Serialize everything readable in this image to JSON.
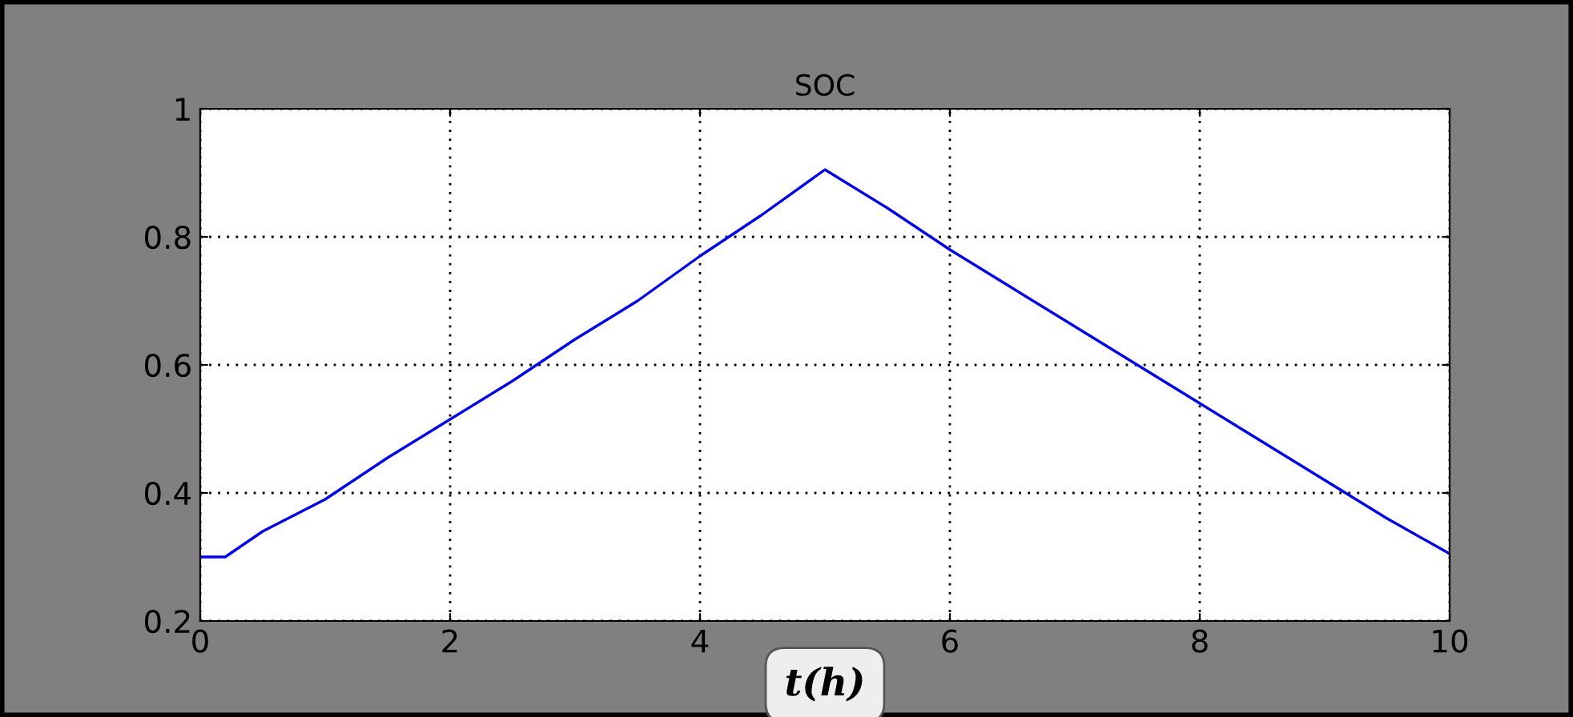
{
  "chart_data": {
    "type": "line",
    "title": "SOC",
    "xlabel": "t(h)",
    "x": [
      0,
      0.2,
      0.5,
      1,
      1.5,
      2,
      2.5,
      3,
      3.5,
      4,
      4.5,
      5,
      5.5,
      6,
      6.5,
      7,
      7.5,
      8,
      8.5,
      9,
      9.5,
      10
    ],
    "series": [
      {
        "color": "#0000ff",
        "values": [
          0.3,
          0.3,
          0.34,
          0.39,
          0.455,
          0.515,
          0.575,
          0.64,
          0.7,
          0.77,
          0.835,
          0.905,
          0.845,
          0.78,
          0.72,
          0.66,
          0.6,
          0.54,
          0.48,
          0.42,
          0.36,
          0.305
        ]
      }
    ],
    "xlim": [
      0,
      10
    ],
    "ylim": [
      0.2,
      1
    ],
    "xticks": [
      0,
      2,
      4,
      6,
      8,
      10
    ],
    "yticks": [
      0.2,
      0.4,
      0.6,
      0.8,
      1
    ],
    "grid": true,
    "line_style": "solid",
    "marker": "none",
    "legend": false
  }
}
